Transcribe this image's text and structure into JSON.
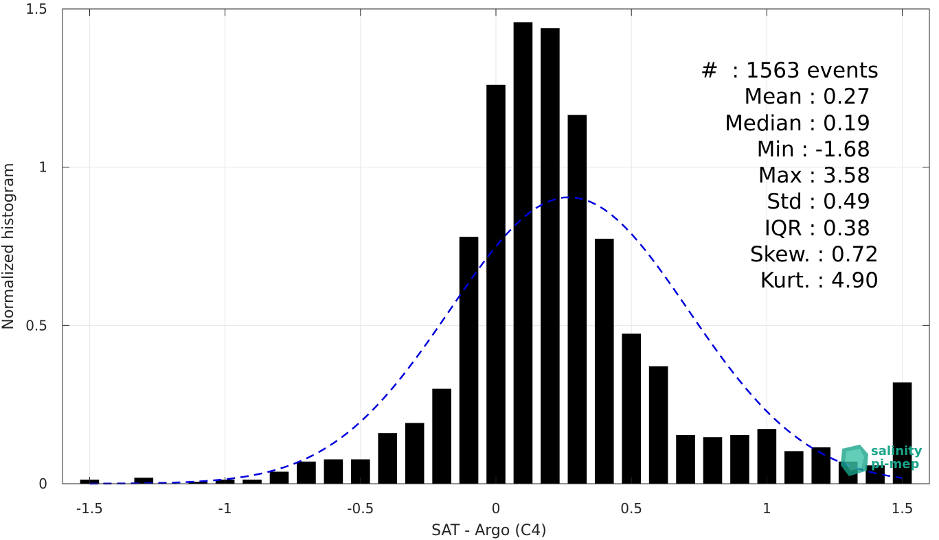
{
  "chart_data": {
    "type": "bar",
    "xlabel": "SAT - Argo (C4)",
    "ylabel": "Normalized histogram",
    "xlim": [
      -1.6,
      1.6
    ],
    "ylim": [
      0,
      1.5
    ],
    "xticks": [
      "-1.5",
      "-1",
      "-0.5",
      "0",
      "0.5",
      "1",
      "1.5"
    ],
    "yticks": [
      "0",
      "0.5",
      "1",
      "1.5"
    ],
    "grid": true,
    "bar_width": 0.07,
    "bars": {
      "x": [
        -1.5,
        -1.3,
        -1.1,
        -1.0,
        -0.9,
        -0.8,
        -0.7,
        -0.6,
        -0.5,
        -0.4,
        -0.3,
        -0.2,
        -0.1,
        0.0,
        0.1,
        0.2,
        0.3,
        0.4,
        0.5,
        0.6,
        0.7,
        0.8,
        0.9,
        1.0,
        1.1,
        1.2,
        1.3,
        1.4,
        1.5
      ],
      "values": [
        0.013,
        0.019,
        0.006,
        0.013,
        0.013,
        0.038,
        0.07,
        0.077,
        0.077,
        0.16,
        0.192,
        0.3,
        0.78,
        1.26,
        1.458,
        1.439,
        1.165,
        0.774,
        0.474,
        0.371,
        0.154,
        0.147,
        0.154,
        0.173,
        0.103,
        0.115,
        0.07,
        0.058,
        0.32
      ]
    },
    "fit_curve": {
      "style": "dashed",
      "color": "#0000dd",
      "mean": 0.27,
      "std": 0.44,
      "x_range": [
        -1.5,
        1.5
      ],
      "peak": 0.905
    }
  },
  "stats": [
    "#  : 1563 events",
    "Mean : 0.27",
    "Median : 0.19",
    "Min : -1.68",
    "Max : 3.58",
    "Std : 0.49",
    "IQR : 0.38",
    "Skew. : 0.72",
    "Kurt. : 4.90"
  ],
  "logo": {
    "line1": "salinity",
    "line2": "pi-mep"
  },
  "colors": {
    "bars": "#000000",
    "fit": "#0000dd",
    "logo": "#1aa58a"
  }
}
